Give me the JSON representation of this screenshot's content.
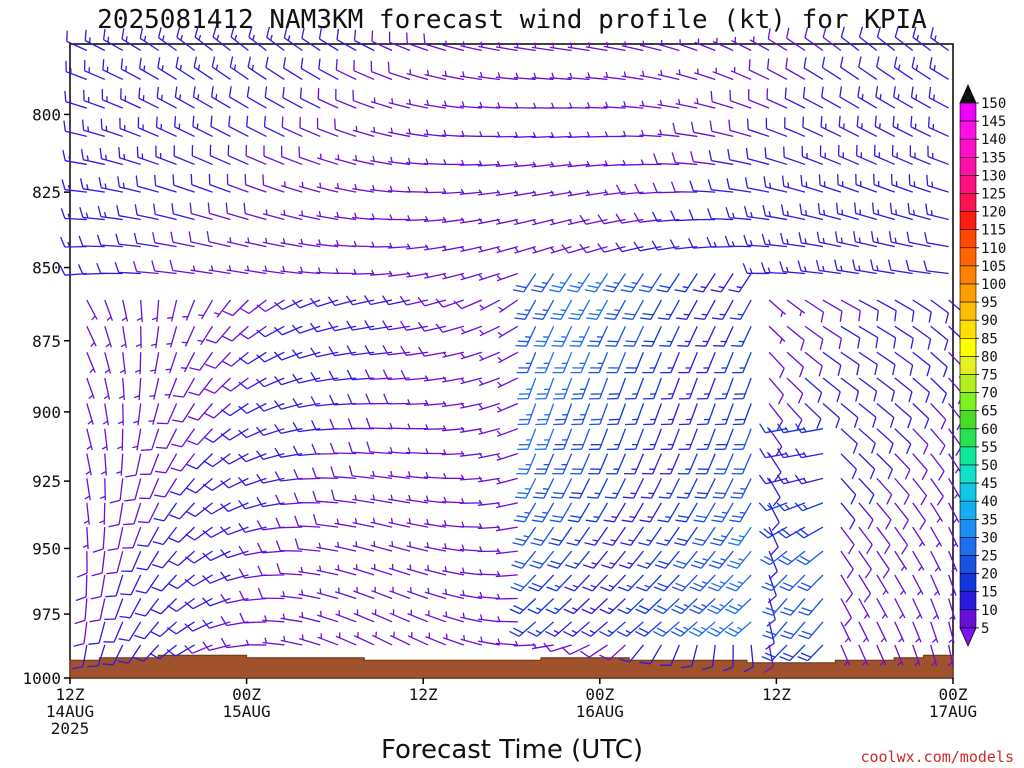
{
  "chart_data": {
    "type": "wind_barb_time_height",
    "title": "2025081412 NAM3KM forecast wind profile (kt) for KPIA",
    "xlabel": "Forecast Time (UTC)",
    "credit": "coolwx.com/models",
    "y_axis": {
      "quantity": "pressure (hPa)",
      "inverted": true,
      "ticks": [
        800,
        825,
        850,
        875,
        900,
        925,
        950,
        975,
        1000
      ],
      "range": [
        1000,
        778
      ]
    },
    "x_axis": {
      "range": [
        "2025-08-14T12:00Z",
        "2025-08-17T00:00Z"
      ],
      "ticks": [
        {
          "hour": 0,
          "lines": [
            "12Z",
            "14AUG",
            "2025"
          ]
        },
        {
          "hour": 12,
          "lines": [
            "00Z",
            "15AUG"
          ]
        },
        {
          "hour": 24,
          "lines": [
            "12Z"
          ]
        },
        {
          "hour": 36,
          "lines": [
            "00Z",
            "16AUG"
          ]
        },
        {
          "hour": 48,
          "lines": [
            "12Z"
          ]
        },
        {
          "hour": 60,
          "lines": [
            "00Z",
            "17AUG"
          ]
        }
      ]
    },
    "colorbar": {
      "units": "kt",
      "levels": [
        5,
        10,
        15,
        20,
        25,
        30,
        35,
        40,
        45,
        50,
        55,
        60,
        65,
        70,
        75,
        80,
        85,
        90,
        95,
        100,
        105,
        110,
        115,
        120,
        125,
        130,
        135,
        140,
        145,
        150
      ],
      "colors": [
        "#7b14f0",
        "#6a0dd8",
        "#2b1ae0",
        "#1036dc",
        "#1a52e6",
        "#1e6ef0",
        "#1a8ef0",
        "#12aef0",
        "#10c8e6",
        "#12e0c8",
        "#10e69a",
        "#28e250",
        "#48dc28",
        "#7cf020",
        "#b4f020",
        "#e6f020",
        "#ffff00",
        "#ffe000",
        "#ffbe00",
        "#ff9e00",
        "#ff8200",
        "#ff6600",
        "#ff4800",
        "#ff1e10",
        "#ff1050",
        "#ff1080",
        "#ff10a8",
        "#ff10c8",
        "#ff10e6",
        "#ee00ff"
      ],
      "extend": "both"
    },
    "wind_speed_summary_kt": {
      "range": [
        3,
        28
      ],
      "stronger_period": "2025-08-15T20Z to 2025-08-16T10Z, 975-850 hPa, about 20-28 kt"
    },
    "terrain_surface_pressure_hpa": [
      [
        0,
        993
      ],
      [
        2,
        992
      ],
      [
        4,
        992
      ],
      [
        6,
        991
      ],
      [
        8,
        991
      ],
      [
        10,
        991
      ],
      [
        12,
        992
      ],
      [
        14,
        992
      ],
      [
        16,
        992
      ],
      [
        18,
        992
      ],
      [
        20,
        993
      ],
      [
        22,
        993
      ],
      [
        24,
        993
      ],
      [
        26,
        993
      ],
      [
        28,
        993
      ],
      [
        30,
        993
      ],
      [
        32,
        992
      ],
      [
        34,
        992
      ],
      [
        36,
        992
      ],
      [
        38,
        993
      ],
      [
        40,
        993
      ],
      [
        42,
        993
      ],
      [
        44,
        993
      ],
      [
        46,
        994
      ],
      [
        48,
        994
      ],
      [
        50,
        994
      ],
      [
        52,
        993
      ],
      [
        54,
        993
      ],
      [
        56,
        992
      ],
      [
        58,
        991
      ],
      [
        60,
        991
      ]
    ]
  }
}
